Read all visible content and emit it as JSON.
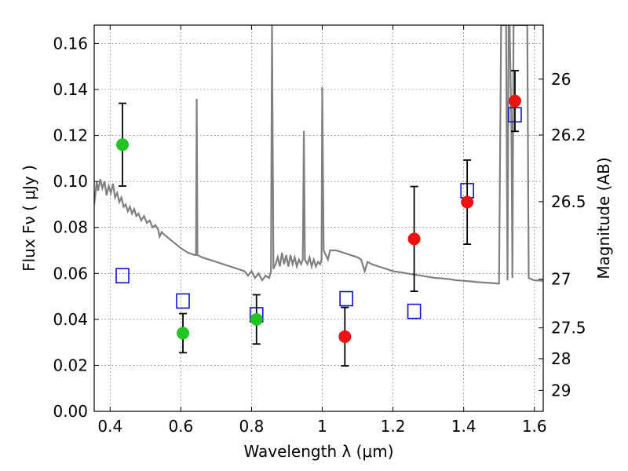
{
  "chart_data": {
    "type": "scatter",
    "xlabel": "Wavelength  λ (μm)",
    "ylabel": "Flux  Fν  ( μJy )",
    "y2label": "Magnitude (AB)",
    "xlim": [
      0.355,
      1.625
    ],
    "ylim": [
      0.0,
      0.168
    ],
    "x_ticks": [
      0.4,
      0.6,
      0.8,
      1.0,
      1.2,
      1.4,
      1.6
    ],
    "x_tick_labels": [
      "0.4",
      "0.6",
      "0.8",
      "1",
      "1.2",
      "1.4",
      "1.6"
    ],
    "y_ticks": [
      0.0,
      0.02,
      0.04,
      0.06,
      0.08,
      0.1,
      0.12,
      0.14,
      0.16
    ],
    "y_tick_labels": [
      "0.00",
      "0.02",
      "0.04",
      "0.06",
      "0.08",
      "0.10",
      "0.12",
      "0.14",
      "0.16"
    ],
    "y2_ticks": [
      {
        "label": "26",
        "flux": 0.1445
      },
      {
        "label": "26.2",
        "flux": 0.1202
      },
      {
        "label": "26.5",
        "flux": 0.0912
      },
      {
        "label": "27",
        "flux": 0.0575
      },
      {
        "label": "27.5",
        "flux": 0.0363
      },
      {
        "label": "28",
        "flux": 0.0229
      },
      {
        "label": "29",
        "flux": 0.0091
      }
    ],
    "grid": true,
    "colors": {
      "model": "#808080",
      "green": "#22c422",
      "red": "#f01010",
      "box": "#1010cc",
      "errorbar": "#000000"
    },
    "series": [
      {
        "marker": "green-circle",
        "points": [
          {
            "x": 0.435,
            "y": 0.116,
            "err": 0.018
          },
          {
            "x": 0.606,
            "y": 0.034,
            "err": 0.0085
          },
          {
            "x": 0.814,
            "y": 0.04,
            "err": 0.0107
          }
        ]
      },
      {
        "marker": "red-circle",
        "points": [
          {
            "x": 1.064,
            "y": 0.0325,
            "err": 0.0127
          },
          {
            "x": 1.26,
            "y": 0.075,
            "err": 0.0228
          },
          {
            "x": 1.41,
            "y": 0.091,
            "err": 0.0183
          },
          {
            "x": 1.545,
            "y": 0.135,
            "err": 0.0132
          }
        ]
      },
      {
        "marker": "blue-open-square",
        "points": [
          {
            "x": 0.435,
            "y": 0.059
          },
          {
            "x": 0.606,
            "y": 0.048
          },
          {
            "x": 0.814,
            "y": 0.042
          },
          {
            "x": 1.068,
            "y": 0.049
          },
          {
            "x": 1.26,
            "y": 0.0435
          },
          {
            "x": 1.41,
            "y": 0.096
          },
          {
            "x": 1.545,
            "y": 0.129
          }
        ]
      }
    ],
    "model_spectrum": [
      [
        0.355,
        0.09
      ],
      [
        0.362,
        0.1
      ],
      [
        0.366,
        0.096
      ],
      [
        0.372,
        0.101
      ],
      [
        0.378,
        0.097
      ],
      [
        0.384,
        0.1
      ],
      [
        0.39,
        0.094
      ],
      [
        0.396,
        0.098
      ],
      [
        0.402,
        0.095
      ],
      [
        0.408,
        0.099
      ],
      [
        0.414,
        0.093
      ],
      [
        0.42,
        0.095
      ],
      [
        0.426,
        0.091
      ],
      [
        0.432,
        0.093
      ],
      [
        0.438,
        0.089
      ],
      [
        0.444,
        0.09
      ],
      [
        0.45,
        0.087
      ],
      [
        0.456,
        0.089
      ],
      [
        0.462,
        0.086
      ],
      [
        0.468,
        0.088
      ],
      [
        0.474,
        0.085
      ],
      [
        0.48,
        0.086
      ],
      [
        0.488,
        0.083
      ],
      [
        0.496,
        0.085
      ],
      [
        0.504,
        0.082
      ],
      [
        0.512,
        0.083
      ],
      [
        0.52,
        0.08
      ],
      [
        0.528,
        0.081
      ],
      [
        0.536,
        0.079
      ],
      [
        0.54,
        0.076
      ],
      [
        0.546,
        0.078
      ],
      [
        0.552,
        0.077
      ],
      [
        0.56,
        0.076
      ],
      [
        0.568,
        0.075
      ],
      [
        0.576,
        0.074
      ],
      [
        0.584,
        0.073
      ],
      [
        0.592,
        0.072
      ],
      [
        0.6,
        0.071
      ],
      [
        0.61,
        0.07
      ],
      [
        0.62,
        0.069
      ],
      [
        0.63,
        0.0685
      ],
      [
        0.64,
        0.068
      ],
      [
        0.643,
        0.068
      ],
      [
        0.645,
        0.136
      ],
      [
        0.647,
        0.068
      ],
      [
        0.66,
        0.067
      ],
      [
        0.68,
        0.066
      ],
      [
        0.7,
        0.065
      ],
      [
        0.72,
        0.064
      ],
      [
        0.74,
        0.063
      ],
      [
        0.76,
        0.062
      ],
      [
        0.78,
        0.061
      ],
      [
        0.79,
        0.059
      ],
      [
        0.8,
        0.061
      ],
      [
        0.81,
        0.058
      ],
      [
        0.82,
        0.06
      ],
      [
        0.83,
        0.057
      ],
      [
        0.84,
        0.059
      ],
      [
        0.85,
        0.058
      ],
      [
        0.855,
        0.061
      ],
      [
        0.858,
        0.168
      ],
      [
        0.862,
        0.062
      ],
      [
        0.868,
        0.064
      ],
      [
        0.874,
        0.067
      ],
      [
        0.88,
        0.063
      ],
      [
        0.886,
        0.069
      ],
      [
        0.892,
        0.064
      ],
      [
        0.898,
        0.068
      ],
      [
        0.904,
        0.063
      ],
      [
        0.91,
        0.068
      ],
      [
        0.916,
        0.064
      ],
      [
        0.922,
        0.067
      ],
      [
        0.928,
        0.063
      ],
      [
        0.934,
        0.066
      ],
      [
        0.94,
        0.064
      ],
      [
        0.945,
        0.066
      ],
      [
        0.948,
        0.122
      ],
      [
        0.951,
        0.066
      ],
      [
        0.958,
        0.064
      ],
      [
        0.964,
        0.067
      ],
      [
        0.97,
        0.063
      ],
      [
        0.976,
        0.066
      ],
      [
        0.982,
        0.063
      ],
      [
        0.988,
        0.065
      ],
      [
        0.994,
        0.064
      ],
      [
        0.998,
        0.066
      ],
      [
        1.0,
        0.141
      ],
      [
        1.004,
        0.07
      ],
      [
        1.01,
        0.068
      ],
      [
        1.016,
        0.066
      ],
      [
        1.022,
        0.07
      ],
      [
        1.04,
        0.07
      ],
      [
        1.06,
        0.069
      ],
      [
        1.08,
        0.068
      ],
      [
        1.1,
        0.067
      ],
      [
        1.11,
        0.066
      ],
      [
        1.12,
        0.061
      ],
      [
        1.128,
        0.065
      ],
      [
        1.14,
        0.064
      ],
      [
        1.16,
        0.063
      ],
      [
        1.18,
        0.062
      ],
      [
        1.2,
        0.061
      ],
      [
        1.22,
        0.0605
      ],
      [
        1.24,
        0.06
      ],
      [
        1.26,
        0.0595
      ],
      [
        1.28,
        0.059
      ],
      [
        1.3,
        0.0585
      ],
      [
        1.32,
        0.058
      ],
      [
        1.34,
        0.0578
      ],
      [
        1.36,
        0.0575
      ],
      [
        1.38,
        0.057
      ],
      [
        1.4,
        0.0568
      ],
      [
        1.42,
        0.0565
      ],
      [
        1.44,
        0.0562
      ],
      [
        1.46,
        0.056
      ],
      [
        1.48,
        0.0558
      ],
      [
        1.5,
        0.0556
      ],
      [
        1.506,
        0.168
      ],
      [
        1.52,
        0.168
      ],
      [
        1.524,
        0.057
      ],
      [
        1.527,
        0.168
      ],
      [
        1.53,
        0.168
      ],
      [
        1.535,
        0.124
      ],
      [
        1.538,
        0.058
      ],
      [
        1.541,
        0.168
      ],
      [
        1.58,
        0.168
      ],
      [
        1.584,
        0.058
      ],
      [
        1.6,
        0.057
      ],
      [
        1.625,
        0.0568
      ]
    ]
  }
}
